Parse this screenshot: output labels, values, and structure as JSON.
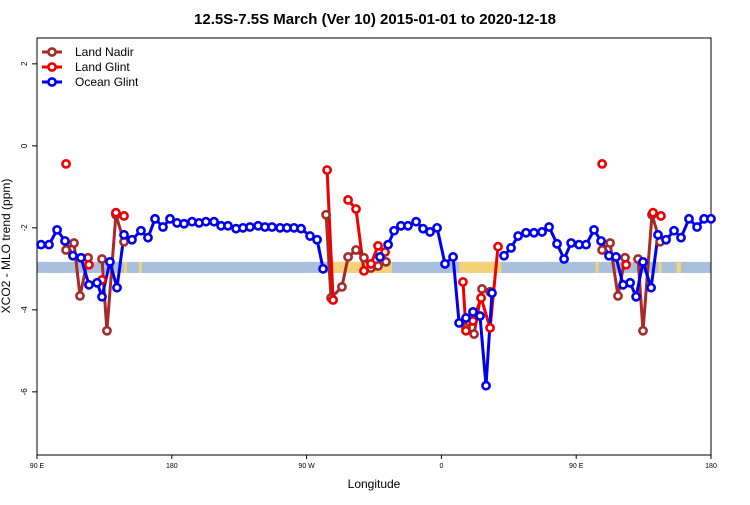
{
  "chart_data": {
    "type": "line",
    "title": "12.5S-7.5S March (Ver 10)   2015-01-01 to 2020-12-18",
    "x_label": "Longitude",
    "y_label": "XCO2 - MLO trend (ppm)",
    "xlim": [
      90,
      540
    ],
    "ylim": [
      -7.54,
      2.63
    ],
    "xticks": [
      {
        "value": 90,
        "label": "90 E"
      },
      {
        "value": 180,
        "label": "180"
      },
      {
        "value": 270,
        "label": "90 W"
      },
      {
        "value": 360,
        "label": "0"
      },
      {
        "value": 450,
        "label": "90 E"
      },
      {
        "value": 540,
        "label": "180"
      }
    ],
    "yticks": [
      2,
      0,
      -2,
      -4,
      -6
    ],
    "legend": "top-left",
    "mask_band": {
      "ylim": [
        -3.1,
        -2.83
      ],
      "ocean_color": "#a8c0dc",
      "land_color": "#f5d27a",
      "land_segments": [
        [
          148,
          150
        ],
        [
          158,
          160
        ],
        [
          285,
          327
        ],
        [
          372,
          400
        ],
        [
          463,
          465
        ],
        [
          505,
          507
        ],
        [
          517,
          520
        ]
      ]
    },
    "series": [
      {
        "name": "Land Nadir",
        "color": "#a52a2a",
        "x": [
          109.4,
          114.7,
          118.7,
          124.1,
          null,
          133.4,
          136.7,
          142.7,
          148.1,
          null,
          283.0,
          286.3,
          293.6,
          297.7,
          303.0,
          308.3,
          313.0,
          317.7,
          323.0,
          null,
          376.4,
          381.8,
          387.1,
          392.5,
          null,
          467.3,
          472.6,
          477.9,
          482.6,
          null,
          491.3,
          494.6,
          500.6,
          506.0
        ],
        "values": [
          -2.54,
          -2.37,
          -3.66,
          -2.73,
          null,
          -2.76,
          -4.51,
          -1.68,
          -2.34,
          null,
          -1.68,
          -3.71,
          -3.44,
          -2.71,
          -2.54,
          -2.73,
          -2.98,
          -2.93,
          -2.83,
          null,
          -4.44,
          -4.59,
          -3.49,
          -3.56,
          null,
          -2.54,
          -2.37,
          -3.66,
          -2.73,
          null,
          -2.76,
          -4.51,
          -1.68,
          -2.34
        ]
      },
      {
        "name": "Land Glint",
        "color": "#ee0000",
        "x": [
          109.4,
          null,
          124.7,
          null,
          133.4,
          null,
          142.7,
          148.1,
          null,
          283.7,
          287.7,
          null,
          297.7,
          303.0,
          308.3,
          313.0,
          317.7,
          322.4,
          null,
          374.4,
          376.4,
          381.1,
          386.5,
          392.5,
          397.8,
          null,
          467.3,
          null,
          483.3,
          null,
          501.3,
          506.6
        ],
        "values": [
          -0.44,
          null,
          -2.9,
          null,
          -3.27,
          null,
          -1.63,
          -1.71,
          null,
          -0.59,
          -3.76,
          null,
          -1.32,
          -1.54,
          -3.05,
          -2.88,
          -2.44,
          -2.59,
          null,
          -3.32,
          -4.51,
          -4.27,
          -3.71,
          -4.44,
          -2.46,
          null,
          -0.44,
          null,
          -2.9,
          null,
          -1.63,
          -1.71
        ]
      },
      {
        "name": "Ocean Glint",
        "color": "#0000ee",
        "x": [
          92.7,
          98.0,
          103.4,
          108.7,
          114.0,
          119.4,
          124.7,
          130.1,
          133.4,
          138.7,
          143.4,
          148.1,
          153.4,
          159.4,
          164.1,
          168.8,
          174.1,
          178.8,
          183.5,
          188.2,
          193.5,
          198.2,
          202.8,
          208.2,
          212.9,
          217.5,
          222.9,
          227.5,
          232.2,
          237.6,
          242.2,
          246.9,
          252.3,
          256.9,
          261.6,
          266.3,
          272.3,
          277.0,
          281.0,
          null,
          319.0,
          324.4,
          328.4,
          333.0,
          337.7,
          343.1,
          347.7,
          352.4,
          357.1,
          362.4,
          367.8,
          371.8,
          376.4,
          381.1,
          385.8,
          389.8,
          393.8,
          null,
          401.8,
          406.5,
          411.2,
          416.5,
          421.8,
          427.2,
          431.9,
          437.2,
          441.9,
          446.6,
          451.9,
          456.6,
          461.9,
          466.6,
          471.9,
          476.6,
          481.3,
          486.0,
          490.0,
          494.6,
          500.0,
          504.6,
          510.0,
          515.3,
          520.0,
          525.3,
          530.7,
          535.4,
          540.0
        ],
        "values": [
          -2.41,
          -2.41,
          -2.05,
          -2.32,
          -2.68,
          -2.73,
          -3.39,
          -3.34,
          -3.68,
          -2.83,
          -3.46,
          -2.17,
          -2.29,
          -2.07,
          -2.24,
          -1.78,
          -1.98,
          -1.78,
          -1.88,
          -1.9,
          -1.85,
          -1.88,
          -1.85,
          -1.85,
          -1.95,
          -1.95,
          -2.02,
          -2.0,
          -1.98,
          -1.95,
          -1.98,
          -1.98,
          -2.0,
          -2.0,
          -2.0,
          -2.02,
          -2.2,
          -2.29,
          -3.0,
          null,
          -2.71,
          -2.41,
          -2.07,
          -1.95,
          -1.95,
          -1.85,
          -2.02,
          -2.1,
          -2.0,
          -2.88,
          -2.71,
          -4.32,
          -4.2,
          -4.05,
          -4.15,
          -5.85,
          -3.59,
          null,
          -2.68,
          -2.49,
          -2.2,
          -2.12,
          -2.12,
          -2.1,
          -1.98,
          -2.39,
          -2.76,
          -2.37,
          -2.41,
          -2.41,
          -2.05,
          -2.32,
          -2.68,
          -2.71,
          -3.39,
          -3.34,
          -3.68,
          -2.83,
          -3.46,
          -2.17,
          -2.29,
          -2.07,
          -2.24,
          -1.78,
          -1.98,
          -1.78,
          -1.78
        ]
      }
    ]
  }
}
